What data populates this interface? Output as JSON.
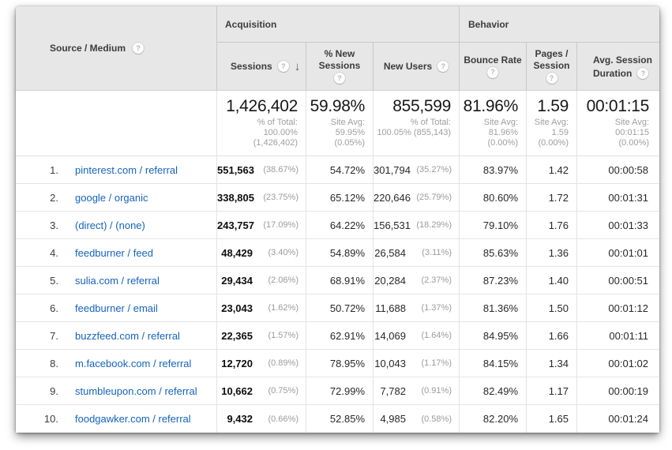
{
  "colors": {
    "header_bg": "#e7e7e7",
    "link_blue": "#1563bb",
    "muted_gray": "#9b9b9b"
  },
  "icons": {
    "help": "?"
  },
  "table": {
    "headers": {
      "source": "Source / Medium",
      "acquisition": "Acquisition",
      "behavior": "Behavior",
      "sessions": "Sessions",
      "sort_arrow": "↓",
      "new_sessions_l1": "% New",
      "new_sessions_l2": "Sessions",
      "new_users": "New Users",
      "bounce": "Bounce Rate",
      "pages_l1": "Pages /",
      "pages_l2": "Session",
      "duration_l1": "Avg. Session",
      "duration_l2": "Duration"
    },
    "summary": {
      "sessions": {
        "value": "1,426,402",
        "sub1": "% of Total:",
        "sub2": "100.00%",
        "sub3": "(1,426,402)"
      },
      "new_sessions": {
        "value": "59.98%",
        "sub1": "Site Avg:",
        "sub2": "59.95%",
        "sub3": "(0.05%)"
      },
      "new_users": {
        "value": "855,599",
        "sub1": "% of Total:",
        "sub2": "100.05% (855,143)",
        "sub3": ""
      },
      "bounce": {
        "value": "81.96%",
        "sub1": "Site Avg:",
        "sub2": "81.96%",
        "sub3": "(0.00%)"
      },
      "pages": {
        "value": "1.59",
        "sub1": "Site Avg:",
        "sub2": "1.59",
        "sub3": "(0.00%)"
      },
      "duration": {
        "value": "00:01:15",
        "sub1": "Site Avg:",
        "sub2": "00:01:15",
        "sub3": "(0.00%)"
      }
    },
    "rows": [
      {
        "rank": "1.",
        "source": "pinterest.com / referral",
        "sessions": "551,563",
        "sessions_pct": "(38.67%)",
        "new_sessions": "54.72%",
        "new_users": "301,794",
        "new_users_pct": "(35.27%)",
        "bounce": "83.97%",
        "pages": "1.42",
        "duration": "00:00:58"
      },
      {
        "rank": "2.",
        "source": "google / organic",
        "sessions": "338,805",
        "sessions_pct": "(23.75%)",
        "new_sessions": "65.12%",
        "new_users": "220,646",
        "new_users_pct": "(25.79%)",
        "bounce": "80.60%",
        "pages": "1.72",
        "duration": "00:01:31"
      },
      {
        "rank": "3.",
        "source": "(direct) / (none)",
        "sessions": "243,757",
        "sessions_pct": "(17.09%)",
        "new_sessions": "64.22%",
        "new_users": "156,531",
        "new_users_pct": "(18.29%)",
        "bounce": "79.10%",
        "pages": "1.76",
        "duration": "00:01:33"
      },
      {
        "rank": "4.",
        "source": "feedburner / feed",
        "sessions": "48,429",
        "sessions_pct": "(3.40%)",
        "new_sessions": "54.89%",
        "new_users": "26,584",
        "new_users_pct": "(3.11%)",
        "bounce": "85.63%",
        "pages": "1.36",
        "duration": "00:01:01"
      },
      {
        "rank": "5.",
        "source": "sulia.com / referral",
        "sessions": "29,434",
        "sessions_pct": "(2.06%)",
        "new_sessions": "68.91%",
        "new_users": "20,284",
        "new_users_pct": "(2.37%)",
        "bounce": "87.23%",
        "pages": "1.40",
        "duration": "00:00:51"
      },
      {
        "rank": "6.",
        "source": "feedburner / email",
        "sessions": "23,043",
        "sessions_pct": "(1.62%)",
        "new_sessions": "50.72%",
        "new_users": "11,688",
        "new_users_pct": "(1.37%)",
        "bounce": "81.36%",
        "pages": "1.50",
        "duration": "00:01:12"
      },
      {
        "rank": "7.",
        "source": "buzzfeed.com / referral",
        "sessions": "22,365",
        "sessions_pct": "(1.57%)",
        "new_sessions": "62.91%",
        "new_users": "14,069",
        "new_users_pct": "(1.64%)",
        "bounce": "84.95%",
        "pages": "1.66",
        "duration": "00:01:11"
      },
      {
        "rank": "8.",
        "source": "m.facebook.com / referral",
        "sessions": "12,720",
        "sessions_pct": "(0.89%)",
        "new_sessions": "78.95%",
        "new_users": "10,043",
        "new_users_pct": "(1.17%)",
        "bounce": "84.15%",
        "pages": "1.34",
        "duration": "00:01:02"
      },
      {
        "rank": "9.",
        "source": "stumbleupon.com / referral",
        "sessions": "10,662",
        "sessions_pct": "(0.75%)",
        "new_sessions": "72.99%",
        "new_users": "7,782",
        "new_users_pct": "(0.91%)",
        "bounce": "82.49%",
        "pages": "1.17",
        "duration": "00:00:19"
      },
      {
        "rank": "10.",
        "source": "foodgawker.com / referral",
        "sessions": "9,432",
        "sessions_pct": "(0.66%)",
        "new_sessions": "52.85%",
        "new_users": "4,985",
        "new_users_pct": "(0.58%)",
        "bounce": "82.20%",
        "pages": "1.65",
        "duration": "00:01:24"
      }
    ]
  }
}
